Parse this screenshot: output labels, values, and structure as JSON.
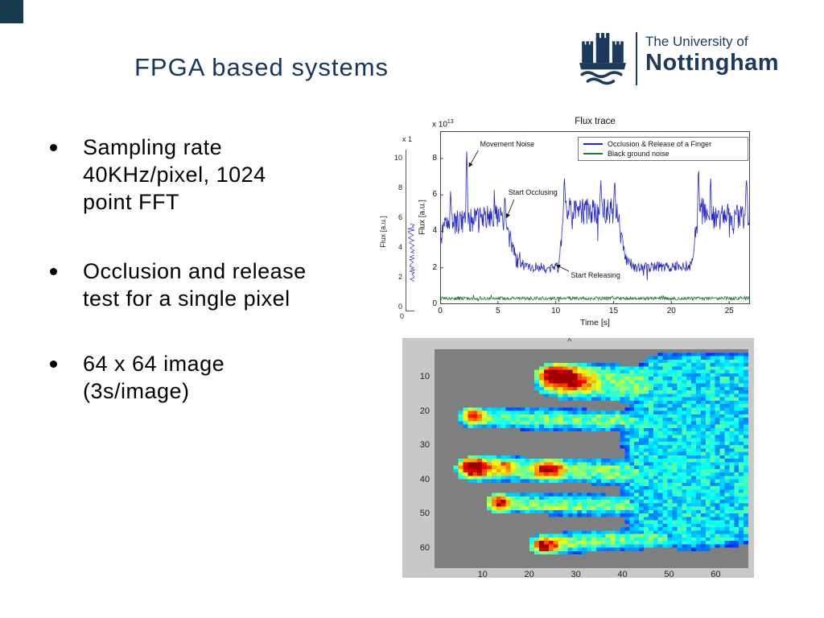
{
  "slide": {
    "title": "FPGA based systems",
    "bullets": [
      {
        "lines": [
          "Sampling rate",
          "40KHz/pixel, 1024",
          "point FFT"
        ]
      },
      {
        "lines": [
          "Occlusion and release",
          "test for a single pixel"
        ]
      },
      {
        "lines": [
          "64 x 64 image",
          "(3s/image)"
        ]
      }
    ]
  },
  "logo": {
    "line1": "The University of",
    "line2": "Nottingham",
    "color": "#1b3a5e"
  },
  "colors": {
    "title": "#17365d",
    "corner_square": "#173b4d",
    "figure_bg": "#c9c8c6",
    "heatmap_bg": "#7f7f7f"
  },
  "background_chart_fragment": {
    "y_scale_label": "x 1",
    "ylabel": "Flux [a.u.]",
    "yticks": [
      10,
      8,
      6,
      4,
      2,
      0
    ],
    "xtick": "0",
    "line_color": "#2a2ad0"
  },
  "chart_data": [
    {
      "type": "line",
      "title": "Flux trace",
      "xlabel": "Time [s]",
      "ylabel": "Flux [a.u.]",
      "y_scale_base": "x 10",
      "y_scale_exponent": "13",
      "xlim": [
        0,
        26.8
      ],
      "ylim": [
        0,
        9.5
      ],
      "xticks": [
        0,
        5,
        10,
        15,
        20,
        25
      ],
      "yticks": [
        0,
        2,
        4,
        6,
        8
      ],
      "grid": false,
      "legend_position": "top-right",
      "legend": [
        {
          "label": "Occlusion & Release of a Finger",
          "color": "#2525cf"
        },
        {
          "label": "Black ground noise",
          "color": "#1a7a2e"
        }
      ],
      "annotations": [
        {
          "label": "Movement Noise",
          "text_at": [
            3.45,
            8.8
          ],
          "arrow_from": [
            3.3,
            8.45
          ],
          "arrow_to": [
            2.5,
            7.55
          ]
        },
        {
          "label": "Start Occlusing",
          "text_at": [
            5.9,
            6.15
          ],
          "arrow_from": [
            6.4,
            5.75
          ],
          "arrow_to": [
            5.75,
            4.75
          ]
        },
        {
          "label": "Start Releasing",
          "text_at": [
            11.3,
            1.6
          ],
          "arrow_from": [
            11.15,
            1.8
          ],
          "arrow_to": [
            10.05,
            2.15
          ]
        }
      ],
      "series": [
        {
          "name": "Occlusion & Release of a Finger",
          "color": "#2525cf",
          "envelope": [
            [
              0,
              3.4,
              0.4
            ],
            [
              0.4,
              4.4,
              0.65
            ],
            [
              5.2,
              4.9,
              0.65
            ],
            [
              6.6,
              2.4,
              0.4
            ],
            [
              7.4,
              2.0,
              0.28
            ],
            [
              10.2,
              2.0,
              0.28
            ],
            [
              10.8,
              5.1,
              0.75
            ],
            [
              15.2,
              5.1,
              0.75
            ],
            [
              16.2,
              2.3,
              0.4
            ],
            [
              17.0,
              2.0,
              0.28
            ],
            [
              21.7,
              2.1,
              0.3
            ],
            [
              22.4,
              5.3,
              0.8
            ],
            [
              23.2,
              4.8,
              0.7
            ],
            [
              26.8,
              4.8,
              0.7
            ]
          ],
          "spikes": [
            [
              0.9,
              6.2,
              0.1
            ],
            [
              2.3,
              8.4,
              0.09
            ],
            [
              5.6,
              5.9,
              0.12
            ],
            [
              10.75,
              6.9,
              0.12
            ],
            [
              13.9,
              6.8,
              0.1
            ],
            [
              15.1,
              6.8,
              0.1
            ],
            [
              22.35,
              7.4,
              0.1
            ],
            [
              23.4,
              6.9,
              0.1
            ],
            [
              26.5,
              6.8,
              0.14
            ]
          ]
        },
        {
          "name": "Black ground noise",
          "color": "#1a7a2e",
          "envelope": [
            [
              0,
              0.32,
              0.09
            ],
            [
              26.8,
              0.32,
              0.09
            ]
          ],
          "spikes": []
        }
      ]
    },
    {
      "type": "heatmap",
      "description": "64 x 64 laser Doppler blood-flux image of a hand, jet colormap, fingers pointing left, gray background",
      "caret_mark": "^",
      "xticks": [
        10,
        20,
        30,
        40,
        50,
        60
      ],
      "yticks": [
        10,
        20,
        30,
        40,
        50,
        60
      ],
      "grid_cols": 66,
      "grid_rows": 64,
      "value_offset_rows": 2,
      "colormap": "jet",
      "background_color": "#7f7f7f",
      "base_value_fingers": 0.42,
      "base_value_palm": 0.36,
      "noise_amp": 0.11,
      "edge_softness": 2.0,
      "fingers": [
        {
          "a": [
            26,
            11
          ],
          "b": [
            52,
            13
          ],
          "r": 5.5
        },
        {
          "a": [
            8,
            22
          ],
          "b": [
            42,
            23
          ],
          "r": 3.2
        },
        {
          "a": [
            8,
            37
          ],
          "b": [
            44,
            38
          ],
          "r": 3.8
        },
        {
          "a": [
            14,
            47
          ],
          "b": [
            46,
            48
          ],
          "r": 3.2
        },
        {
          "a": [
            23,
            59
          ],
          "b": [
            48,
            57
          ],
          "r": 3.2
        }
      ],
      "palm": [
        {
          "a": [
            50,
            12
          ],
          "b": [
            66,
            12
          ],
          "r": 9
        },
        {
          "a": [
            50,
            28
          ],
          "b": [
            66,
            28
          ],
          "r": 11
        },
        {
          "a": [
            50,
            45
          ],
          "b": [
            66,
            45
          ],
          "r": 11
        },
        {
          "a": [
            54,
            54
          ],
          "b": [
            66,
            52
          ],
          "r": 7
        },
        {
          "a": [
            47,
            22
          ],
          "b": [
            47,
            50
          ],
          "r": 7
        }
      ],
      "hotspots": [
        [
          27,
          10,
          2.8,
          0.58
        ],
        [
          23,
          9,
          1.8,
          0.3
        ],
        [
          31,
          12,
          2.0,
          0.22
        ],
        [
          8,
          21,
          1.8,
          0.5
        ],
        [
          8,
          36,
          2.6,
          0.62
        ],
        [
          24,
          37,
          2.1,
          0.48
        ],
        [
          15,
          36,
          1.8,
          0.24
        ],
        [
          13,
          47,
          2.1,
          0.5
        ],
        [
          23,
          60,
          2.3,
          0.5
        ]
      ]
    }
  ]
}
